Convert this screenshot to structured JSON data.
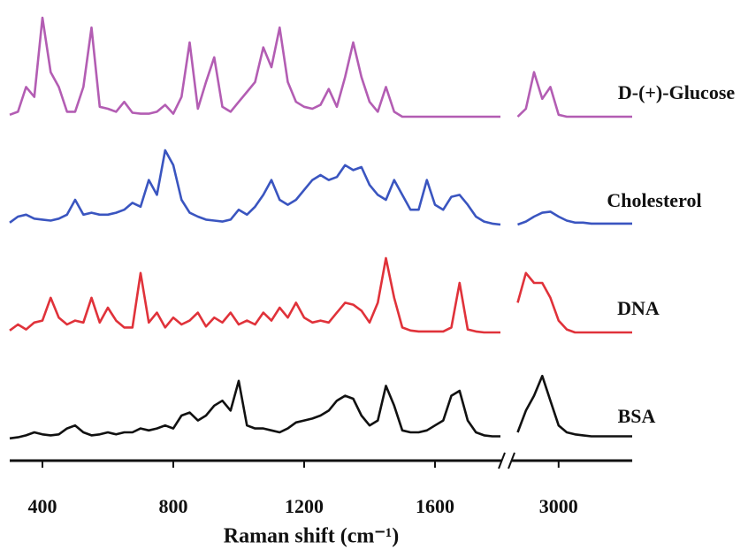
{
  "chart_data": {
    "type": "line",
    "xlabel": "Raman shift (cm⁻¹)",
    "xlim": [
      300,
      3225
    ],
    "x_break": [
      1800,
      2860
    ],
    "xticks": [
      400,
      800,
      1200,
      1600,
      3000
    ],
    "ylim": [
      0,
      1
    ],
    "x": [
      300,
      325,
      350,
      375,
      400,
      425,
      450,
      475,
      500,
      525,
      550,
      575,
      600,
      625,
      650,
      675,
      700,
      725,
      750,
      775,
      800,
      825,
      850,
      875,
      900,
      925,
      950,
      975,
      1000,
      1025,
      1050,
      1075,
      1100,
      1125,
      1150,
      1175,
      1200,
      1225,
      1250,
      1275,
      1300,
      1325,
      1350,
      1375,
      1400,
      1425,
      1450,
      1475,
      1500,
      1525,
      1550,
      1575,
      1600,
      1625,
      1650,
      1675,
      1700,
      1725,
      1750,
      1775,
      1800,
      2875,
      2900,
      2925,
      2950,
      2975,
      3000,
      3025,
      3050,
      3075,
      3100,
      3125,
      3150,
      3175,
      3200,
      3225
    ],
    "series": [
      {
        "name": "D-(+)-Glucose",
        "color": "#b35db3",
        "values": [
          0.02,
          0.05,
          0.3,
          0.2,
          1.0,
          0.45,
          0.3,
          0.05,
          0.05,
          0.3,
          0.9,
          0.1,
          0.08,
          0.05,
          0.15,
          0.04,
          0.03,
          0.03,
          0.05,
          0.12,
          0.03,
          0.2,
          0.75,
          0.08,
          0.35,
          0.6,
          0.1,
          0.05,
          0.15,
          0.25,
          0.35,
          0.7,
          0.5,
          0.9,
          0.35,
          0.15,
          0.1,
          0.08,
          0.12,
          0.28,
          0.1,
          0.4,
          0.75,
          0.4,
          0.15,
          0.05,
          0.3,
          0.05,
          0,
          0,
          0,
          0,
          0,
          0,
          0,
          0,
          0,
          0,
          0,
          0,
          0,
          0,
          0.08,
          0.45,
          0.18,
          0.3,
          0.02,
          0,
          0,
          0,
          0,
          0,
          0,
          0,
          0,
          0
        ]
      },
      {
        "name": "Cholesterol",
        "color": "#3a55c0",
        "values": [
          0.02,
          0.08,
          0.1,
          0.06,
          0.05,
          0.04,
          0.06,
          0.1,
          0.25,
          0.1,
          0.12,
          0.1,
          0.1,
          0.12,
          0.15,
          0.22,
          0.18,
          0.45,
          0.3,
          0.75,
          0.6,
          0.25,
          0.12,
          0.08,
          0.05,
          0.04,
          0.03,
          0.05,
          0.15,
          0.1,
          0.18,
          0.3,
          0.45,
          0.25,
          0.2,
          0.25,
          0.35,
          0.45,
          0.5,
          0.45,
          0.48,
          0.6,
          0.55,
          0.58,
          0.4,
          0.3,
          0.25,
          0.45,
          0.3,
          0.15,
          0.15,
          0.45,
          0.2,
          0.15,
          0.28,
          0.3,
          0.2,
          0.08,
          0.03,
          0.01,
          0,
          0,
          0.03,
          0.08,
          0.12,
          0.13,
          0.08,
          0.04,
          0.02,
          0.02,
          0.01,
          0.01,
          0.01,
          0.01,
          0.01,
          0.01
        ]
      },
      {
        "name": "DNA",
        "color": "#e0323a",
        "values": [
          0.02,
          0.08,
          0.03,
          0.1,
          0.12,
          0.35,
          0.15,
          0.08,
          0.12,
          0.1,
          0.35,
          0.1,
          0.25,
          0.12,
          0.05,
          0.05,
          0.6,
          0.1,
          0.2,
          0.05,
          0.15,
          0.08,
          0.12,
          0.2,
          0.06,
          0.15,
          0.1,
          0.2,
          0.08,
          0.12,
          0.08,
          0.2,
          0.12,
          0.25,
          0.15,
          0.3,
          0.15,
          0.1,
          0.12,
          0.1,
          0.2,
          0.3,
          0.28,
          0.22,
          0.1,
          0.3,
          0.75,
          0.35,
          0.05,
          0.02,
          0.01,
          0.01,
          0.01,
          0.01,
          0.05,
          0.5,
          0.03,
          0.01,
          0,
          0,
          0,
          0.3,
          0.6,
          0.5,
          0.5,
          0.35,
          0.12,
          0.03,
          0,
          0,
          0,
          0,
          0,
          0,
          0,
          0
        ]
      },
      {
        "name": "BSA",
        "color": "#111111",
        "values": [
          0.02,
          0.03,
          0.05,
          0.08,
          0.06,
          0.05,
          0.06,
          0.12,
          0.15,
          0.08,
          0.05,
          0.06,
          0.08,
          0.06,
          0.08,
          0.08,
          0.12,
          0.1,
          0.12,
          0.15,
          0.12,
          0.25,
          0.28,
          0.2,
          0.25,
          0.35,
          0.4,
          0.3,
          0.6,
          0.15,
          0.12,
          0.12,
          0.1,
          0.08,
          0.12,
          0.18,
          0.2,
          0.22,
          0.25,
          0.3,
          0.4,
          0.45,
          0.42,
          0.25,
          0.15,
          0.2,
          0.55,
          0.35,
          0.1,
          0.08,
          0.08,
          0.1,
          0.15,
          0.2,
          0.45,
          0.5,
          0.2,
          0.08,
          0.05,
          0.04,
          0.04,
          0.08,
          0.3,
          0.45,
          0.65,
          0.4,
          0.15,
          0.08,
          0.06,
          0.05,
          0.04,
          0.04,
          0.04,
          0.04,
          0.04,
          0.04
        ]
      }
    ]
  }
}
